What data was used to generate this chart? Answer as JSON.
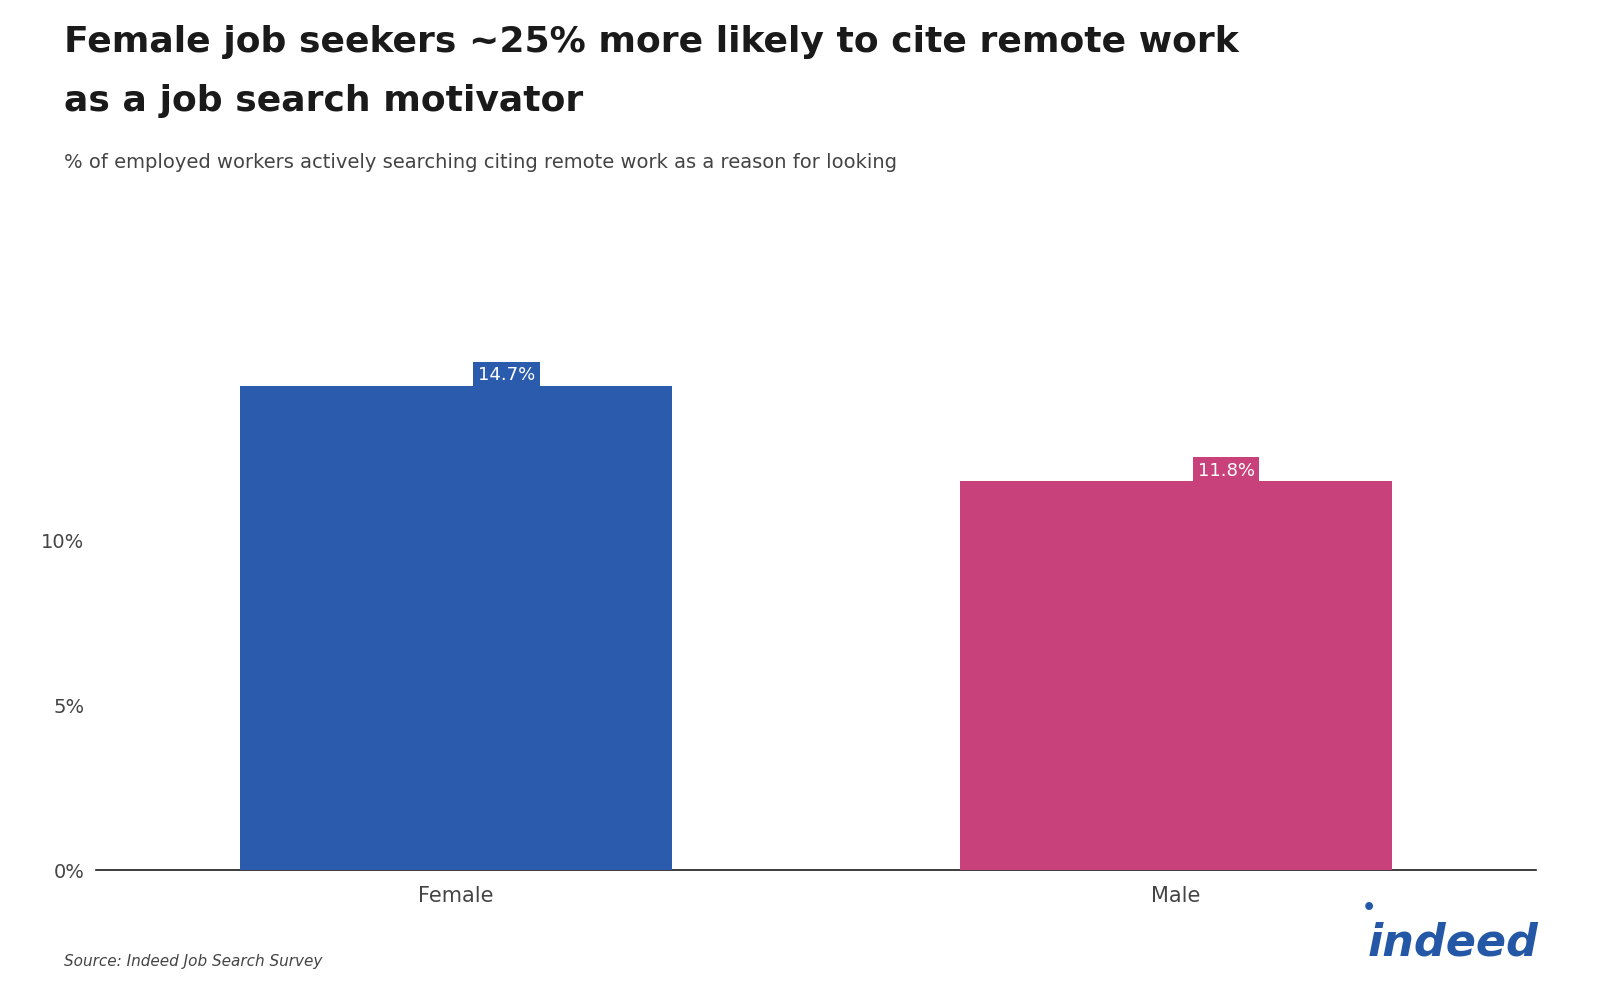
{
  "title_line1": "Female job seekers ~25% more likely to cite remote work",
  "title_line2": "as a job search motivator",
  "subtitle": "% of employed workers actively searching citing remote work as a reason for looking",
  "categories": [
    "Female",
    "Male"
  ],
  "values": [
    14.7,
    11.8
  ],
  "bar_colors": [
    "#2B5BAD",
    "#C8417A"
  ],
  "label_colors": [
    "#2B5BAD",
    "#C8417A"
  ],
  "value_labels": [
    "14.7%",
    "11.8%"
  ],
  "yticks": [
    0,
    5,
    10
  ],
  "ytick_labels": [
    "0%",
    "5%",
    "10%"
  ],
  "ylim": [
    0,
    16.5
  ],
  "source_text": "Source: Indeed Job Search Survey",
  "background_color": "#ffffff",
  "title_color": "#1a1a1a",
  "subtitle_color": "#444444",
  "axis_color": "#1a1a1a",
  "tick_label_color": "#444444",
  "indeed_blue": "#2557A7",
  "indeed_text": "indeed"
}
